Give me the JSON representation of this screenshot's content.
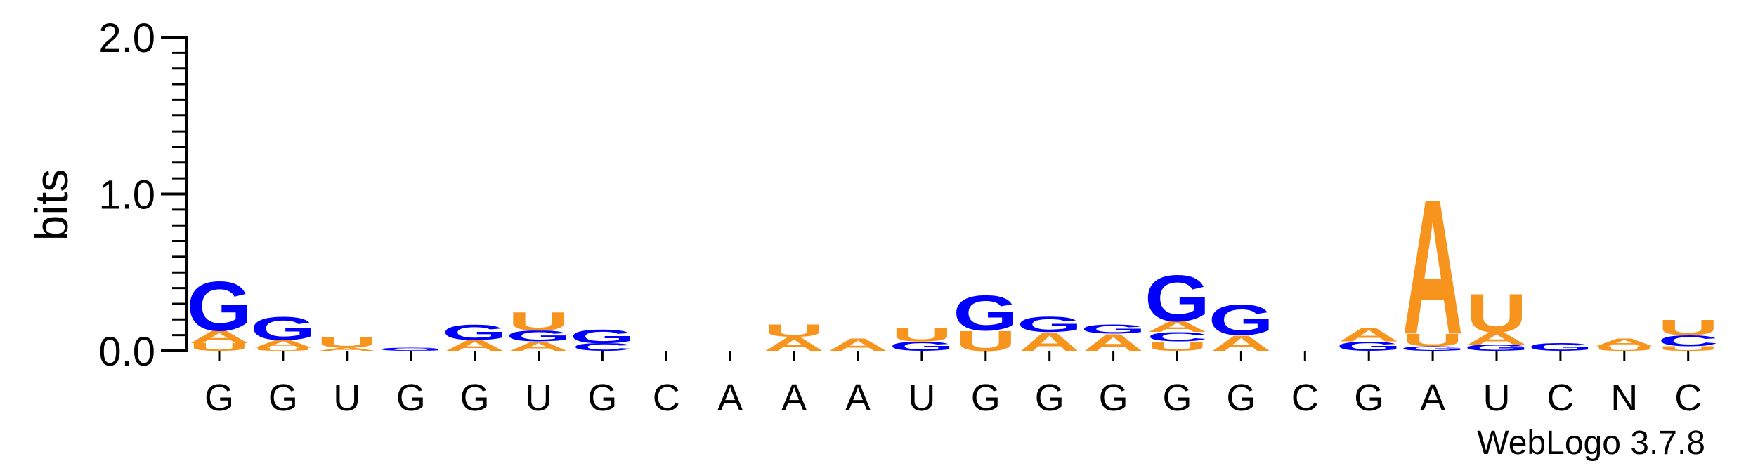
{
  "chart_data": {
    "type": "sequence-logo",
    "ylabel": "bits",
    "ylim": [
      0,
      2.0
    ],
    "yticks": [
      "0.0",
      "1.0",
      "2.0"
    ],
    "x_tick_labels": [
      "G",
      "G",
      "U",
      "G",
      "G",
      "U",
      "G",
      "C",
      "A",
      "A",
      "A",
      "U",
      "G",
      "G",
      "G",
      "G",
      "G",
      "C",
      "G",
      "A",
      "U",
      "C",
      "N",
      "C"
    ],
    "colors": {
      "A": "#f7941d",
      "U": "#f7941d",
      "G": "#0000ff",
      "C": "#0000ff"
    },
    "columns": [
      [
        {
          "l": "U",
          "h": 0.05
        },
        {
          "l": "A",
          "h": 0.08
        },
        {
          "l": "G",
          "h": 0.32
        }
      ],
      [
        {
          "l": "U",
          "h": 0.02
        },
        {
          "l": "A",
          "h": 0.05
        },
        {
          "l": "G",
          "h": 0.15
        }
      ],
      [
        {
          "l": "A",
          "h": 0.02
        },
        {
          "l": "U",
          "h": 0.07
        }
      ],
      [
        {
          "l": "G",
          "h": 0.02
        }
      ],
      [
        {
          "l": "A",
          "h": 0.07
        },
        {
          "l": "G",
          "h": 0.1
        }
      ],
      [
        {
          "l": "A",
          "h": 0.06
        },
        {
          "l": "G",
          "h": 0.07
        },
        {
          "l": "U",
          "h": 0.12
        }
      ],
      [
        {
          "l": "C",
          "h": 0.05
        },
        {
          "l": "G",
          "h": 0.09
        }
      ],
      [],
      [],
      [
        {
          "l": "A",
          "h": 0.09
        },
        {
          "l": "U",
          "h": 0.08
        }
      ],
      [
        {
          "l": "A",
          "h": 0.08
        }
      ],
      [
        {
          "l": "G",
          "h": 0.06
        },
        {
          "l": "U",
          "h": 0.09
        }
      ],
      [
        {
          "l": "U",
          "h": 0.13
        },
        {
          "l": "G",
          "h": 0.23
        }
      ],
      [
        {
          "l": "A",
          "h": 0.12
        },
        {
          "l": "G",
          "h": 0.1
        }
      ],
      [
        {
          "l": "A",
          "h": 0.11
        },
        {
          "l": "G",
          "h": 0.06
        }
      ],
      [
        {
          "l": "U",
          "h": 0.06
        },
        {
          "l": "C",
          "h": 0.06
        },
        {
          "l": "A",
          "h": 0.07
        },
        {
          "l": "G",
          "h": 0.3
        }
      ],
      [
        {
          "l": "A",
          "h": 0.1
        },
        {
          "l": "G",
          "h": 0.2
        }
      ],
      [],
      [
        {
          "l": "G",
          "h": 0.06
        },
        {
          "l": "A",
          "h": 0.09
        }
      ],
      [
        {
          "l": "G",
          "h": 0.03
        },
        {
          "l": "U",
          "h": 0.08
        },
        {
          "l": "A",
          "h": 0.88
        }
      ],
      [
        {
          "l": "G",
          "h": 0.04
        },
        {
          "l": "A",
          "h": 0.08
        },
        {
          "l": "U",
          "h": 0.25
        }
      ],
      [
        {
          "l": "G",
          "h": 0.05
        }
      ],
      [
        {
          "l": "U",
          "h": 0.03
        },
        {
          "l": "A",
          "h": 0.05
        }
      ],
      [
        {
          "l": "U",
          "h": 0.03
        },
        {
          "l": "C",
          "h": 0.07
        },
        {
          "l": "U",
          "h": 0.1
        }
      ]
    ]
  },
  "credit": "WebLogo 3.7.8"
}
